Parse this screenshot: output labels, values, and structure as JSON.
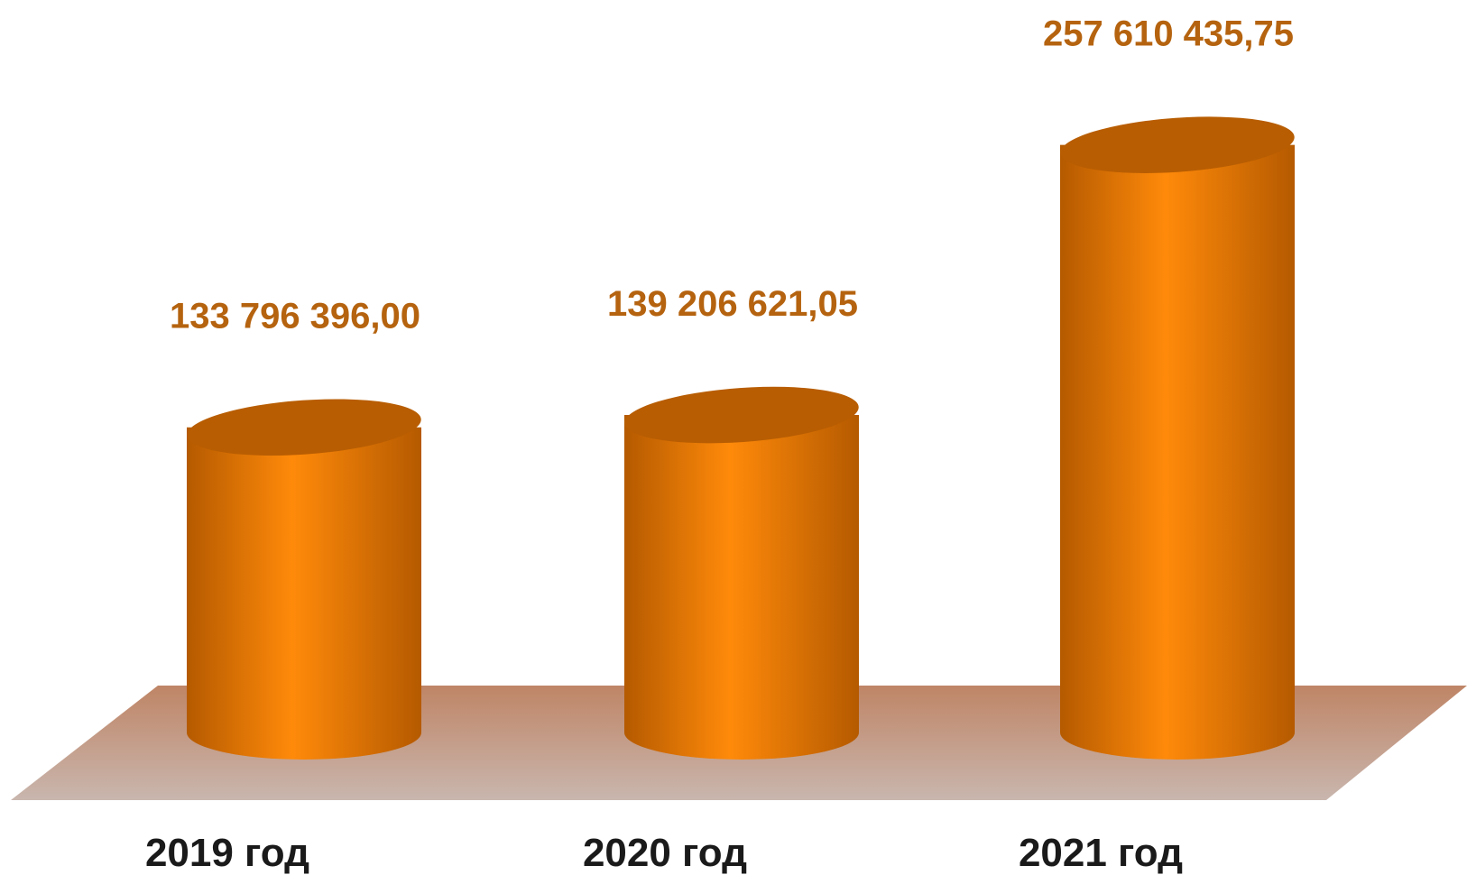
{
  "chart_data": {
    "type": "bar",
    "style": "3d-cylinder",
    "categories": [
      "2019 год",
      "2020 год",
      "2021 год"
    ],
    "values": [
      133796396.0,
      139206621.05,
      257610435.75
    ],
    "value_labels": [
      "133 796 396,00",
      "139 206 621,05",
      "257 610 435,75"
    ],
    "title": "",
    "xlabel": "",
    "ylabel": "",
    "ylim": [
      0,
      265000000
    ],
    "grid": false,
    "legend": "none"
  },
  "colors": {
    "bar_light": "#ff8a0a",
    "bar_dark": "#b55a00",
    "bar_top": "#b85d02",
    "label": "#b5630f",
    "category_text": "#1a1a1a",
    "floor_top": "#bf8566",
    "floor_bottom": "#c9b6ae"
  }
}
